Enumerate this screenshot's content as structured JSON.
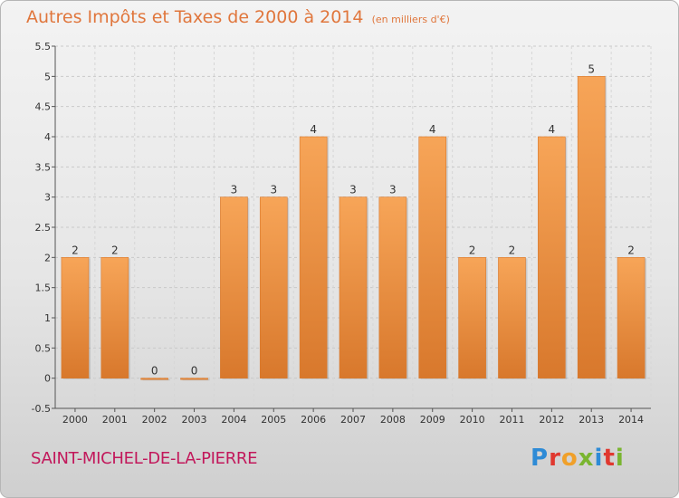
{
  "header": {
    "title": "Autres Impôts et Taxes de 2000 à 2014",
    "unit": "(en milliers d'€)"
  },
  "footer": {
    "place": "SAINT-MICHEL-DE-LA-PIERRE",
    "logo_text": "Proxiti"
  },
  "colors": {
    "title": "#e0763c",
    "place": "#c2185b",
    "bar_light": "#f7a558",
    "bar_dark": "#d8782c",
    "logo": [
      "#2e8bd6",
      "#e0382f",
      "#f0a02a",
      "#7ab530",
      "#2e8bd6",
      "#e0382f",
      "#7ab530"
    ]
  },
  "chart_data": {
    "type": "bar",
    "categories": [
      "2000",
      "2001",
      "2002",
      "2003",
      "2004",
      "2005",
      "2006",
      "2007",
      "2008",
      "2009",
      "2010",
      "2011",
      "2012",
      "2013",
      "2014"
    ],
    "values": [
      2,
      2,
      0,
      0,
      3,
      3,
      4,
      3,
      3,
      4,
      2,
      2,
      4,
      5,
      2
    ],
    "ylim": [
      -0.5,
      5.5
    ],
    "yticks": [
      "-0.5",
      "0",
      "0.5",
      "1",
      "1.5",
      "2",
      "2.5",
      "3",
      "3.5",
      "4",
      "4.5",
      "5",
      "5.5"
    ],
    "grid": true
  }
}
